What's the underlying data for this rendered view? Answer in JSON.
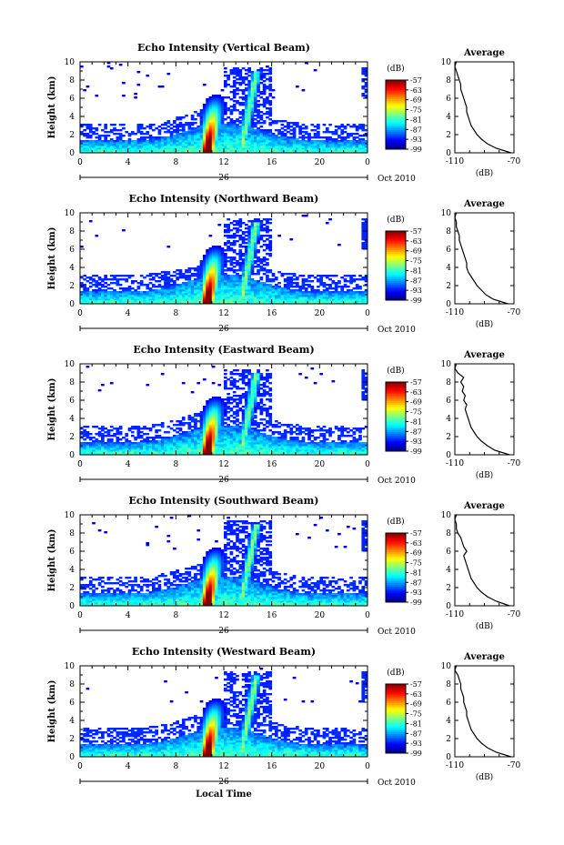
{
  "chart_data": [
    {
      "type": "heatmap",
      "title": "Echo Intensity (Vertical Beam)",
      "ylabel": "Height (km)",
      "ylim": [
        0,
        10
      ],
      "yticks": [
        "0",
        "2",
        "4",
        "6",
        "8",
        "10"
      ],
      "xticks": [
        "0",
        "4",
        "8",
        "12",
        "16",
        "20",
        "0"
      ],
      "xlim": [
        0,
        24
      ],
      "date_day": "26",
      "date_month_year": "Oct 2010",
      "colorbar": {
        "unit": "(dB)",
        "labels": [
          "-57",
          "-63",
          "-69",
          "-75",
          "-81",
          "-87",
          "-93",
          "-99"
        ],
        "range": [
          -99,
          -57
        ]
      },
      "profile": {
        "title": "Average",
        "xlabel": "(dB)",
        "xticks": [
          "-110",
          "-70"
        ],
        "xlim": [
          -110,
          -70
        ],
        "ylim": [
          0,
          10
        ],
        "height_km": [
          0,
          0.5,
          1,
          1.5,
          2,
          2.5,
          3,
          3.5,
          4,
          4.5,
          5,
          5.5,
          6,
          6.5,
          7,
          7.5,
          8,
          8.5,
          9,
          9.5,
          10
        ],
        "values_db": [
          -72,
          -82,
          -88,
          -92,
          -95,
          -97,
          -99,
          -100,
          -101,
          -102,
          -102,
          -103,
          -104,
          -105,
          -106,
          -106,
          -107,
          -108,
          -109,
          -110,
          -109
        ]
      }
    },
    {
      "type": "heatmap",
      "title": "Echo Intensity (Northward Beam)",
      "ylabel": "Height (km)",
      "ylim": [
        0,
        10
      ],
      "yticks": [
        "0",
        "2",
        "4",
        "6",
        "8",
        "10"
      ],
      "xticks": [
        "0",
        "4",
        "8",
        "12",
        "16",
        "20",
        "0"
      ],
      "xlim": [
        0,
        24
      ],
      "date_day": "26",
      "date_month_year": "Oct 2010",
      "colorbar": {
        "unit": "(dB)",
        "labels": [
          "-57",
          "-63",
          "-69",
          "-75",
          "-81",
          "-87",
          "-93",
          "-99"
        ],
        "range": [
          -99,
          -57
        ]
      },
      "profile": {
        "title": "Average",
        "xlabel": "(dB)",
        "xticks": [
          "-110",
          "-70"
        ],
        "xlim": [
          -110,
          -70
        ],
        "ylim": [
          0,
          10
        ],
        "height_km": [
          0,
          0.5,
          1,
          1.5,
          2,
          2.5,
          3,
          3.5,
          4,
          4.5,
          5,
          5.5,
          6,
          6.5,
          7,
          7.5,
          8,
          8.5,
          9,
          9.5,
          10
        ],
        "values_db": [
          -74,
          -84,
          -89,
          -92,
          -95,
          -97,
          -99,
          -101,
          -102,
          -102,
          -103,
          -104,
          -105,
          -106,
          -107,
          -107,
          -108,
          -109,
          -109,
          -110,
          -109
        ]
      }
    },
    {
      "type": "heatmap",
      "title": "Echo Intensity (Eastward Beam)",
      "ylabel": "Height (km)",
      "ylim": [
        0,
        10
      ],
      "yticks": [
        "0",
        "2",
        "4",
        "6",
        "8",
        "10"
      ],
      "xticks": [
        "0",
        "4",
        "8",
        "12",
        "16",
        "20",
        "0"
      ],
      "xlim": [
        0,
        24
      ],
      "date_day": "26",
      "date_month_year": "Oct 2010",
      "colorbar": {
        "unit": "(dB)",
        "labels": [
          "-57",
          "-63",
          "-69",
          "-75",
          "-81",
          "-87",
          "-93",
          "-99"
        ],
        "range": [
          -99,
          -57
        ]
      },
      "profile": {
        "title": "Average",
        "xlabel": "(dB)",
        "xticks": [
          "-110",
          "-70"
        ],
        "xlim": [
          -110,
          -70
        ],
        "ylim": [
          0,
          10
        ],
        "height_km": [
          0,
          0.5,
          1,
          1.5,
          2,
          2.5,
          3,
          3.5,
          4,
          4.5,
          5,
          5.5,
          6,
          6.5,
          7,
          7.5,
          8,
          8.5,
          9,
          9.5,
          10
        ],
        "values_db": [
          -73,
          -83,
          -88,
          -92,
          -95,
          -97,
          -99,
          -100,
          -101,
          -102,
          -103,
          -102,
          -104,
          -103,
          -105,
          -104,
          -106,
          -104,
          -108,
          -110,
          -109
        ]
      }
    },
    {
      "type": "heatmap",
      "title": "Echo Intensity (Southward Beam)",
      "ylabel": "Height (km)",
      "ylim": [
        0,
        10
      ],
      "yticks": [
        "0",
        "2",
        "4",
        "6",
        "8",
        "10"
      ],
      "xticks": [
        "0",
        "4",
        "8",
        "12",
        "16",
        "20",
        "0"
      ],
      "xlim": [
        0,
        24
      ],
      "date_day": "26",
      "date_month_year": "Oct 2010",
      "colorbar": {
        "unit": "(dB)",
        "labels": [
          "-57",
          "-63",
          "-69",
          "-75",
          "-81",
          "-87",
          "-93",
          "-99"
        ],
        "range": [
          -99,
          -57
        ]
      },
      "profile": {
        "title": "Average",
        "xlabel": "(dB)",
        "xticks": [
          "-110",
          "-70"
        ],
        "xlim": [
          -110,
          -70
        ],
        "ylim": [
          0,
          10
        ],
        "height_km": [
          0,
          0.5,
          1,
          1.5,
          2,
          2.5,
          3,
          3.5,
          4,
          4.5,
          5,
          5.5,
          6,
          6.5,
          7,
          7.5,
          8,
          8.5,
          9,
          9.5,
          10
        ],
        "values_db": [
          -73,
          -82,
          -88,
          -92,
          -95,
          -97,
          -99,
          -100,
          -101,
          -102,
          -103,
          -104,
          -102,
          -104,
          -105,
          -106,
          -108,
          -109,
          -109,
          -110,
          -109
        ]
      }
    },
    {
      "type": "heatmap",
      "title": "Echo Intensity (Westward Beam)",
      "ylabel": "Height (km)",
      "ylim": [
        0,
        10
      ],
      "yticks": [
        "0",
        "2",
        "4",
        "6",
        "8",
        "10"
      ],
      "xticks": [
        "0",
        "4",
        "8",
        "12",
        "16",
        "20",
        "0"
      ],
      "xlim": [
        0,
        24
      ],
      "date_day": "26",
      "date_month_year": "Oct 2010",
      "xlabel": "Local Time",
      "colorbar": {
        "unit": "(dB)",
        "labels": [
          "-57",
          "-63",
          "-69",
          "-75",
          "-81",
          "-87",
          "-93",
          "-99"
        ],
        "range": [
          -99,
          -57
        ]
      },
      "profile": {
        "title": "Average",
        "xlabel": "(dB)",
        "xticks": [
          "-110",
          "-70"
        ],
        "xlim": [
          -110,
          -70
        ],
        "ylim": [
          0,
          10
        ],
        "height_km": [
          0,
          0.5,
          1,
          1.5,
          2,
          2.5,
          3,
          3.5,
          4,
          4.5,
          5,
          5.5,
          6,
          6.5,
          7,
          7.5,
          8,
          8.5,
          9,
          9.5,
          10
        ],
        "values_db": [
          -72,
          -82,
          -88,
          -92,
          -95,
          -97,
          -99,
          -100,
          -101,
          -102,
          -102,
          -103,
          -104,
          -104,
          -105,
          -106,
          -106,
          -107,
          -108,
          -110,
          -109
        ]
      }
    }
  ]
}
